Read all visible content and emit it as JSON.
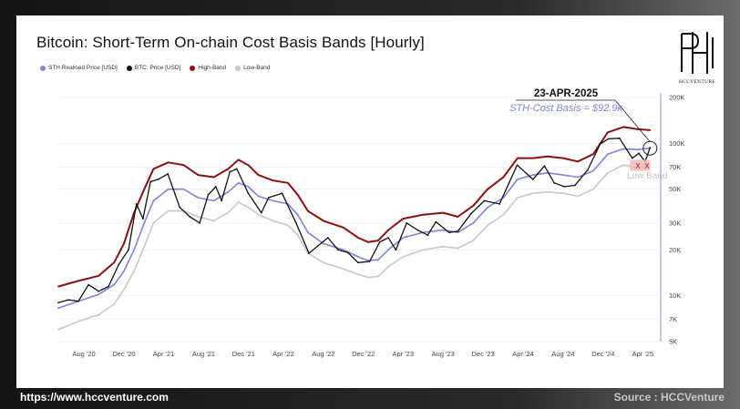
{
  "title": "Bitcoin: Short-Term On-chain Cost Basis Bands [Hourly]",
  "legend": [
    {
      "label": "STH Realised Price [USD]",
      "color": "#7c86d8"
    },
    {
      "label": "BTC: Price [USD]",
      "color": "#111111"
    },
    {
      "label": "High-Band",
      "color": "#8b1010"
    },
    {
      "label": "Low-Band",
      "color": "#c8c8c8"
    }
  ],
  "logo_text": "HCCVENTURE",
  "footer": {
    "url": "https://www.hccventure.com",
    "source": "Source : HCCVenture"
  },
  "annotation": {
    "date": "23-APR-2025",
    "label": "STH-Cost Basis = $92.9k",
    "low_band_label": "Low Band",
    "cross_marks": [
      "X",
      "X"
    ]
  },
  "chart_data": {
    "type": "line",
    "title": "Bitcoin: Short-Term On-chain Cost Basis Bands [Hourly]",
    "xlabel": "",
    "ylabel": "",
    "y_scale": "log",
    "ylim": [
      5000,
      200000
    ],
    "xlim": [
      "2020-05-15",
      "2025-05-20"
    ],
    "y_ticks": [
      {
        "v": 200000,
        "label": "200K"
      },
      {
        "v": 100000,
        "label": "100K"
      },
      {
        "v": 70000,
        "label": "70K"
      },
      {
        "v": 50000,
        "label": "50K"
      },
      {
        "v": 30000,
        "label": "30K"
      },
      {
        "v": 20000,
        "label": "20K"
      },
      {
        "v": 10000,
        "label": "10K"
      },
      {
        "v": 7000,
        "label": "7K"
      },
      {
        "v": 5000,
        "label": "5K"
      }
    ],
    "x_ticks": [
      {
        "d": "2020-08-01",
        "label": "Aug '20"
      },
      {
        "d": "2020-12-01",
        "label": "Dec '20"
      },
      {
        "d": "2021-04-01",
        "label": "Apr '21"
      },
      {
        "d": "2021-08-01",
        "label": "Aug '21"
      },
      {
        "d": "2021-12-01",
        "label": "Dec '21"
      },
      {
        "d": "2022-04-01",
        "label": "Apr '22"
      },
      {
        "d": "2022-08-01",
        "label": "Aug '22"
      },
      {
        "d": "2022-12-01",
        "label": "Dec '22"
      },
      {
        "d": "2023-04-01",
        "label": "Apr '23"
      },
      {
        "d": "2023-08-01",
        "label": "Aug '23"
      },
      {
        "d": "2023-12-01",
        "label": "Dec '23"
      },
      {
        "d": "2024-04-01",
        "label": "Apr '24"
      },
      {
        "d": "2024-08-01",
        "label": "Aug '24"
      },
      {
        "d": "2024-12-01",
        "label": "Dec '24"
      },
      {
        "d": "2025-04-01",
        "label": "Apr '25"
      }
    ],
    "grid": true,
    "legend_position": "top-left",
    "series": [
      {
        "name": "High-Band",
        "color": "#8b1010",
        "points": [
          [
            "2020-05-15",
            11500
          ],
          [
            "2020-07-15",
            12500
          ],
          [
            "2020-09-15",
            13500
          ],
          [
            "2020-11-01",
            16500
          ],
          [
            "2020-12-01",
            22000
          ],
          [
            "2021-01-01",
            35000
          ],
          [
            "2021-02-01",
            50000
          ],
          [
            "2021-03-01",
            68000
          ],
          [
            "2021-04-15",
            75000
          ],
          [
            "2021-06-01",
            72000
          ],
          [
            "2021-07-15",
            62000
          ],
          [
            "2021-09-01",
            60000
          ],
          [
            "2021-10-15",
            68000
          ],
          [
            "2021-11-15",
            78000
          ],
          [
            "2021-12-15",
            72000
          ],
          [
            "2022-01-15",
            62000
          ],
          [
            "2022-03-01",
            57000
          ],
          [
            "2022-04-15",
            55000
          ],
          [
            "2022-05-15",
            46000
          ],
          [
            "2022-06-15",
            36000
          ],
          [
            "2022-08-01",
            31000
          ],
          [
            "2022-10-01",
            28000
          ],
          [
            "2022-11-15",
            24000
          ],
          [
            "2022-12-15",
            22500
          ],
          [
            "2023-01-15",
            23000
          ],
          [
            "2023-02-15",
            27000
          ],
          [
            "2023-04-01",
            32000
          ],
          [
            "2023-06-01",
            34000
          ],
          [
            "2023-08-01",
            35000
          ],
          [
            "2023-09-15",
            33000
          ],
          [
            "2023-11-01",
            39000
          ],
          [
            "2023-12-15",
            50000
          ],
          [
            "2024-02-01",
            60000
          ],
          [
            "2024-03-15",
            80000
          ],
          [
            "2024-05-01",
            80000
          ],
          [
            "2024-06-15",
            82000
          ],
          [
            "2024-08-01",
            80000
          ],
          [
            "2024-09-15",
            76000
          ],
          [
            "2024-11-01",
            85000
          ],
          [
            "2024-12-15",
            118000
          ],
          [
            "2025-02-01",
            128000
          ],
          [
            "2025-03-15",
            124000
          ],
          [
            "2025-04-23",
            122000
          ]
        ]
      },
      {
        "name": "STH Realised Price [USD]",
        "color": "#7c86d8",
        "points": [
          [
            "2020-05-15",
            8300
          ],
          [
            "2020-07-15",
            9200
          ],
          [
            "2020-09-15",
            10200
          ],
          [
            "2020-11-01",
            11800
          ],
          [
            "2020-12-01",
            14500
          ],
          [
            "2021-01-01",
            20000
          ],
          [
            "2021-02-01",
            30000
          ],
          [
            "2021-03-01",
            42000
          ],
          [
            "2021-04-15",
            50000
          ],
          [
            "2021-06-01",
            50000
          ],
          [
            "2021-07-15",
            44000
          ],
          [
            "2021-09-01",
            42000
          ],
          [
            "2021-10-15",
            48000
          ],
          [
            "2021-11-15",
            55000
          ],
          [
            "2021-12-15",
            52000
          ],
          [
            "2022-01-15",
            45000
          ],
          [
            "2022-03-01",
            42000
          ],
          [
            "2022-04-15",
            40000
          ],
          [
            "2022-05-15",
            34000
          ],
          [
            "2022-06-15",
            26000
          ],
          [
            "2022-08-01",
            22000
          ],
          [
            "2022-10-01",
            20000
          ],
          [
            "2022-11-15",
            18000
          ],
          [
            "2022-12-15",
            17000
          ],
          [
            "2023-01-15",
            17200
          ],
          [
            "2023-02-15",
            20000
          ],
          [
            "2023-04-01",
            24000
          ],
          [
            "2023-06-01",
            26000
          ],
          [
            "2023-08-01",
            27000
          ],
          [
            "2023-09-15",
            26000
          ],
          [
            "2023-11-01",
            30000
          ],
          [
            "2023-12-15",
            38000
          ],
          [
            "2024-02-01",
            44000
          ],
          [
            "2024-03-15",
            58000
          ],
          [
            "2024-05-01",
            62000
          ],
          [
            "2024-06-15",
            64000
          ],
          [
            "2024-08-01",
            62000
          ],
          [
            "2024-09-15",
            60000
          ],
          [
            "2024-11-01",
            66000
          ],
          [
            "2024-12-15",
            85000
          ],
          [
            "2025-02-01",
            92000
          ],
          [
            "2025-03-15",
            91000
          ],
          [
            "2025-04-23",
            92900
          ]
        ]
      },
      {
        "name": "Low-Band",
        "color": "#c8c8c8",
        "points": [
          [
            "2020-05-15",
            6000
          ],
          [
            "2020-07-15",
            6800
          ],
          [
            "2020-09-15",
            7500
          ],
          [
            "2020-11-01",
            8800
          ],
          [
            "2020-12-01",
            11000
          ],
          [
            "2021-01-01",
            14500
          ],
          [
            "2021-02-01",
            21000
          ],
          [
            "2021-03-01",
            30000
          ],
          [
            "2021-04-15",
            36000
          ],
          [
            "2021-06-01",
            36000
          ],
          [
            "2021-07-15",
            33000
          ],
          [
            "2021-09-01",
            31000
          ],
          [
            "2021-10-15",
            35000
          ],
          [
            "2021-11-15",
            41000
          ],
          [
            "2021-12-15",
            38000
          ],
          [
            "2022-01-15",
            34000
          ],
          [
            "2022-03-01",
            31000
          ],
          [
            "2022-04-15",
            29000
          ],
          [
            "2022-05-15",
            25000
          ],
          [
            "2022-06-15",
            19000
          ],
          [
            "2022-08-01",
            16500
          ],
          [
            "2022-10-01",
            15000
          ],
          [
            "2022-11-15",
            13800
          ],
          [
            "2022-12-15",
            13200
          ],
          [
            "2023-01-15",
            13400
          ],
          [
            "2023-02-15",
            15500
          ],
          [
            "2023-04-01",
            18000
          ],
          [
            "2023-06-01",
            20000
          ],
          [
            "2023-08-01",
            21000
          ],
          [
            "2023-09-15",
            20500
          ],
          [
            "2023-11-01",
            23000
          ],
          [
            "2023-12-15",
            29000
          ],
          [
            "2024-02-01",
            34000
          ],
          [
            "2024-03-15",
            44000
          ],
          [
            "2024-05-01",
            47000
          ],
          [
            "2024-06-15",
            48000
          ],
          [
            "2024-08-01",
            47000
          ],
          [
            "2024-09-15",
            45000
          ],
          [
            "2024-11-01",
            50000
          ],
          [
            "2024-12-15",
            64000
          ],
          [
            "2025-02-01",
            72000
          ],
          [
            "2025-03-15",
            70000
          ],
          [
            "2025-04-23",
            70000
          ]
        ]
      },
      {
        "name": "BTC: Price [USD]",
        "color": "#111111",
        "points": [
          [
            "2020-05-15",
            9000
          ],
          [
            "2020-06-15",
            9400
          ],
          [
            "2020-07-15",
            9200
          ],
          [
            "2020-08-15",
            11800
          ],
          [
            "2020-09-15",
            10700
          ],
          [
            "2020-10-15",
            11500
          ],
          [
            "2020-11-15",
            16000
          ],
          [
            "2020-12-15",
            20000
          ],
          [
            "2021-01-08",
            40000
          ],
          [
            "2021-01-28",
            32000
          ],
          [
            "2021-02-20",
            56000
          ],
          [
            "2021-03-15",
            58000
          ],
          [
            "2021-04-14",
            63000
          ],
          [
            "2021-05-20",
            38000
          ],
          [
            "2021-06-20",
            33000
          ],
          [
            "2021-07-20",
            30000
          ],
          [
            "2021-08-15",
            46000
          ],
          [
            "2021-09-07",
            52000
          ],
          [
            "2021-09-25",
            42000
          ],
          [
            "2021-10-20",
            65000
          ],
          [
            "2021-11-10",
            68000
          ],
          [
            "2021-12-15",
            47000
          ],
          [
            "2022-01-24",
            35000
          ],
          [
            "2022-02-15",
            44000
          ],
          [
            "2022-03-28",
            47000
          ],
          [
            "2022-05-10",
            30000
          ],
          [
            "2022-06-18",
            19000
          ],
          [
            "2022-08-15",
            24000
          ],
          [
            "2022-09-15",
            20000
          ],
          [
            "2022-10-15",
            19200
          ],
          [
            "2022-11-15",
            16500
          ],
          [
            "2022-12-20",
            16800
          ],
          [
            "2023-01-20",
            22500
          ],
          [
            "2023-02-15",
            24000
          ],
          [
            "2023-03-10",
            20000
          ],
          [
            "2023-04-12",
            30000
          ],
          [
            "2023-05-15",
            27000
          ],
          [
            "2023-06-15",
            25000
          ],
          [
            "2023-07-10",
            30500
          ],
          [
            "2023-08-20",
            26000
          ],
          [
            "2023-09-15",
            26500
          ],
          [
            "2023-10-25",
            34500
          ],
          [
            "2023-12-05",
            42000
          ],
          [
            "2024-01-20",
            40000
          ],
          [
            "2024-03-14",
            72000
          ],
          [
            "2024-05-01",
            58000
          ],
          [
            "2024-06-05",
            71000
          ],
          [
            "2024-07-05",
            55000
          ],
          [
            "2024-08-05",
            52000
          ],
          [
            "2024-09-06",
            53000
          ],
          [
            "2024-10-15",
            67000
          ],
          [
            "2024-11-22",
            99000
          ],
          [
            "2024-12-17",
            107000
          ],
          [
            "2025-01-20",
            108000
          ],
          [
            "2025-02-28",
            80000
          ],
          [
            "2025-03-20",
            86000
          ],
          [
            "2025-04-08",
            76000
          ],
          [
            "2025-04-23",
            93500
          ]
        ]
      }
    ]
  }
}
